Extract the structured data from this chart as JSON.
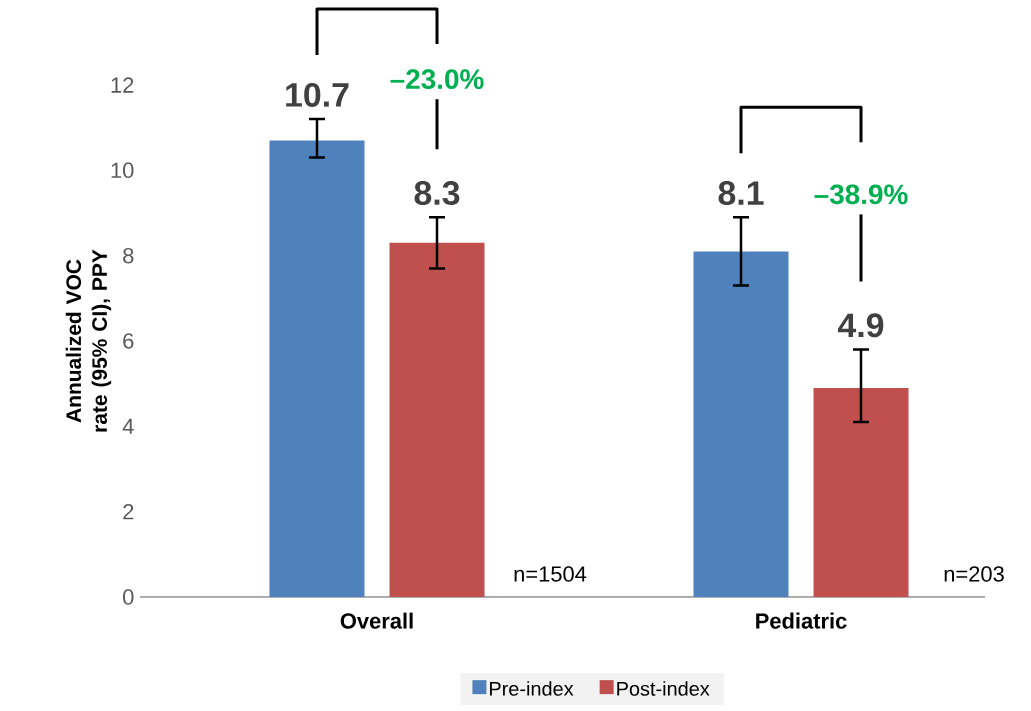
{
  "chart_data": {
    "type": "bar",
    "ylabel": "Annualized VOC rate (95% CI), PPY",
    "categories": [
      "Overall",
      "Pediatric"
    ],
    "series": [
      {
        "name": "Pre-index",
        "color": "#4f81bd",
        "values": [
          10.7,
          8.1
        ],
        "errors": [
          [
            10.3,
            11.2
          ],
          [
            7.3,
            8.9
          ]
        ]
      },
      {
        "name": "Post-index",
        "color": "#c0504d",
        "values": [
          8.3,
          4.9
        ],
        "errors": [
          [
            7.7,
            8.9
          ],
          [
            4.1,
            5.8
          ]
        ]
      }
    ],
    "ylim": [
      0,
      12
    ],
    "yticks": [
      0,
      2,
      4,
      6,
      8,
      10,
      12
    ],
    "data_labels": true,
    "legend": "bottom",
    "annotations": [
      "–23.0%",
      "–38.9%",
      "n=1504",
      "n=203"
    ]
  }
}
